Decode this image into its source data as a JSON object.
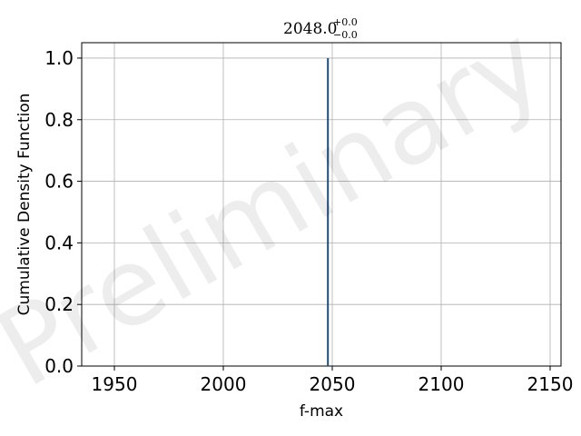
{
  "chart_data": {
    "type": "line",
    "title": {
      "value": "2048.0",
      "upper": "+0.0",
      "lower": "−0.0"
    },
    "xlabel": "f-max",
    "ylabel": "Cumulative Density Function",
    "xlim": [
      1935,
      2155
    ],
    "ylim": [
      0.0,
      1.05
    ],
    "x_ticks": [
      1950,
      2000,
      2050,
      2100,
      2150
    ],
    "y_ticks": [
      0.0,
      0.2,
      0.4,
      0.6,
      0.8,
      1.0
    ],
    "y_tick_labels": [
      "0.0",
      "0.2",
      "0.4",
      "0.6",
      "0.8",
      "1.0"
    ],
    "grid": true,
    "series": [
      {
        "x": [
          2048.0,
          2048.0
        ],
        "y": [
          0.0,
          1.0
        ],
        "color": "#1f4e79"
      }
    ],
    "watermark": "Preliminary"
  }
}
